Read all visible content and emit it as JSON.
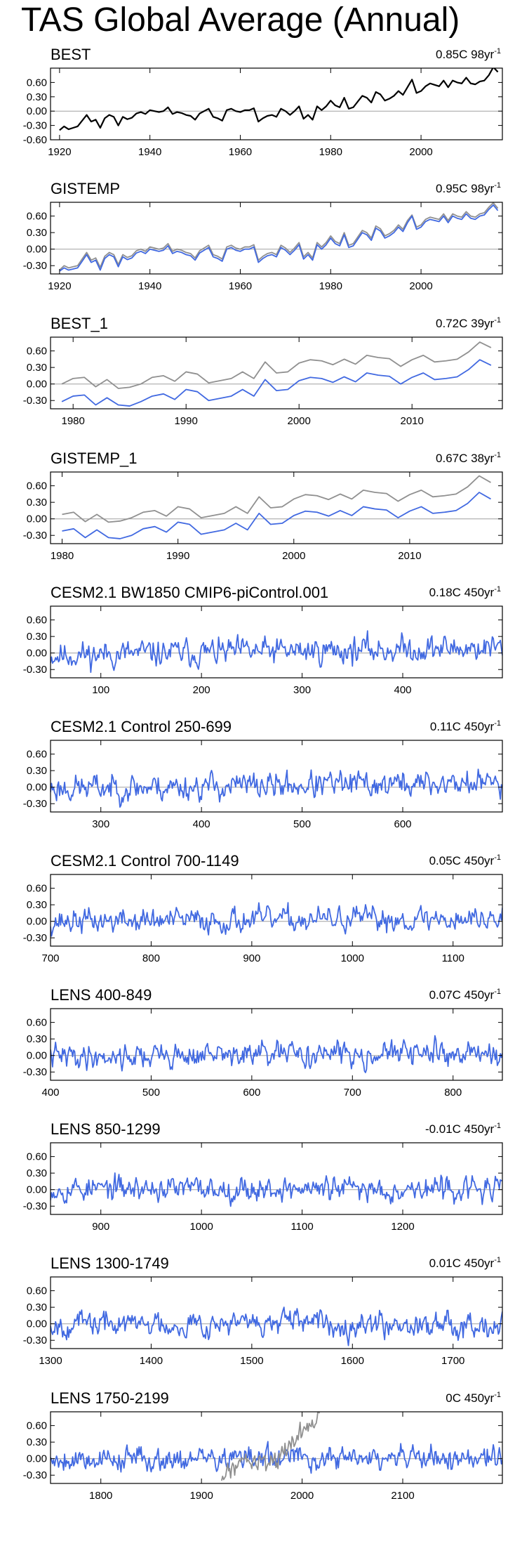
{
  "page_title": "TAS Global Average (Annual)",
  "colors": {
    "model": "#4169e1",
    "observed": "#909090",
    "text": "#000000",
    "zero_line": "#a0a0a0"
  },
  "chart_data": [
    {
      "type": "line",
      "title": "BEST",
      "trend": "0.85C 98yr",
      "trend_unit": "-1",
      "xlim": [
        1918,
        2018
      ],
      "ylim": [
        -0.6,
        0.9
      ],
      "xticks": [
        1920,
        1940,
        1960,
        1980,
        2000
      ],
      "yticks": [
        0.6,
        0.3,
        0.0,
        -0.3,
        -0.6
      ],
      "ytick_labels": [
        "0.60",
        "0.30",
        "0.00",
        "-0.30",
        "-0.60"
      ],
      "series": [
        {
          "name": "BEST",
          "color": "#000000",
          "x_start": 1920,
          "values": [
            -0.4,
            -0.32,
            -0.38,
            -0.35,
            -0.32,
            -0.2,
            -0.08,
            -0.22,
            -0.18,
            -0.35,
            -0.15,
            -0.08,
            -0.12,
            -0.3,
            -0.12,
            -0.17,
            -0.14,
            -0.05,
            -0.02,
            -0.06,
            0.02,
            0.0,
            -0.02,
            0.0,
            0.08,
            -0.06,
            -0.02,
            -0.04,
            -0.08,
            -0.1,
            -0.18,
            -0.05,
            0.0,
            0.05,
            -0.12,
            -0.15,
            -0.2,
            0.02,
            0.05,
            0.0,
            -0.02,
            0.02,
            0.02,
            0.06,
            -0.22,
            -0.15,
            -0.1,
            -0.08,
            -0.12,
            0.05,
            0.0,
            -0.08,
            0.0,
            0.1,
            -0.16,
            -0.08,
            -0.18,
            0.1,
            0.02,
            0.1,
            0.22,
            0.12,
            0.08,
            0.28,
            0.05,
            0.08,
            0.2,
            0.32,
            0.28,
            0.18,
            0.4,
            0.35,
            0.22,
            0.26,
            0.32,
            0.42,
            0.34,
            0.5,
            0.66,
            0.38,
            0.42,
            0.52,
            0.58,
            0.55,
            0.52,
            0.64,
            0.5,
            0.64,
            0.6,
            0.58,
            0.7,
            0.58,
            0.56,
            0.62,
            0.64,
            0.75,
            0.92,
            0.82
          ]
        }
      ]
    },
    {
      "type": "line",
      "title": "GISTEMP",
      "trend": "0.95C 98yr",
      "trend_unit": "-1",
      "xlim": [
        1918,
        2018
      ],
      "ylim": [
        -0.45,
        0.85
      ],
      "xticks": [
        1920,
        1940,
        1960,
        1980,
        2000
      ],
      "yticks": [
        0.6,
        0.3,
        0.0,
        -0.3
      ],
      "ytick_labels": [
        "0.60",
        "0.30",
        "0.00",
        "-0.30"
      ],
      "series": [
        {
          "name": "observed (BEST)",
          "color": "#909090",
          "x_start": 1920,
          "values": [
            -0.38,
            -0.3,
            -0.34,
            -0.32,
            -0.3,
            -0.18,
            -0.06,
            -0.2,
            -0.16,
            -0.33,
            -0.13,
            -0.06,
            -0.1,
            -0.28,
            -0.1,
            -0.15,
            -0.12,
            -0.03,
            0.0,
            -0.04,
            0.04,
            0.02,
            0.0,
            0.02,
            0.1,
            -0.04,
            0.0,
            -0.02,
            -0.06,
            -0.08,
            -0.16,
            -0.03,
            0.02,
            0.07,
            -0.1,
            -0.13,
            -0.18,
            0.04,
            0.07,
            0.02,
            0.0,
            0.04,
            0.04,
            0.08,
            -0.2,
            -0.13,
            -0.08,
            -0.06,
            -0.1,
            0.07,
            0.02,
            -0.06,
            0.02,
            0.12,
            -0.14,
            -0.06,
            -0.16,
            0.12,
            0.04,
            0.12,
            0.24,
            0.14,
            0.1,
            0.3,
            0.07,
            0.1,
            0.22,
            0.34,
            0.3,
            0.2,
            0.42,
            0.37,
            0.24,
            0.28,
            0.34,
            0.44,
            0.36,
            0.52,
            0.62,
            0.4,
            0.44,
            0.54,
            0.58,
            0.56,
            0.54,
            0.64,
            0.52,
            0.64,
            0.6,
            0.58,
            0.68,
            0.6,
            0.58,
            0.64,
            0.66,
            0.76,
            0.84,
            0.74
          ]
        },
        {
          "name": "GISTEMP",
          "color": "#4169e1",
          "x_start": 1920,
          "values": [
            -0.4,
            -0.34,
            -0.38,
            -0.36,
            -0.34,
            -0.22,
            -0.1,
            -0.24,
            -0.2,
            -0.38,
            -0.17,
            -0.1,
            -0.14,
            -0.32,
            -0.14,
            -0.19,
            -0.16,
            -0.07,
            -0.04,
            -0.08,
            0.0,
            -0.02,
            -0.04,
            -0.02,
            0.06,
            -0.08,
            -0.04,
            -0.06,
            -0.1,
            -0.12,
            -0.2,
            -0.07,
            -0.02,
            0.03,
            -0.14,
            -0.17,
            -0.22,
            0.0,
            0.03,
            -0.02,
            -0.04,
            0.0,
            0.0,
            0.04,
            -0.24,
            -0.17,
            -0.12,
            -0.1,
            -0.14,
            0.03,
            -0.02,
            -0.1,
            -0.02,
            0.08,
            -0.18,
            -0.1,
            -0.2,
            0.08,
            0.0,
            0.08,
            0.2,
            0.1,
            0.06,
            0.26,
            0.03,
            0.06,
            0.18,
            0.3,
            0.26,
            0.16,
            0.38,
            0.33,
            0.2,
            0.24,
            0.3,
            0.4,
            0.32,
            0.48,
            0.6,
            0.36,
            0.4,
            0.5,
            0.54,
            0.52,
            0.5,
            0.6,
            0.48,
            0.6,
            0.56,
            0.54,
            0.64,
            0.56,
            0.54,
            0.6,
            0.62,
            0.72,
            0.8,
            0.7
          ]
        }
      ]
    },
    {
      "type": "line",
      "title": "BEST_1",
      "trend": "0.72C 39yr",
      "trend_unit": "-1",
      "xlim": [
        1978,
        2018
      ],
      "ylim": [
        -0.45,
        0.85
      ],
      "xticks": [
        1980,
        1990,
        2000,
        2010
      ],
      "yticks": [
        0.6,
        0.3,
        0.0,
        -0.3
      ],
      "ytick_labels": [
        "0.60",
        "0.30",
        "0.00",
        "-0.30"
      ],
      "series": [
        {
          "name": "observed (BEST)",
          "color": "#909090",
          "x_start": 1979,
          "values": [
            0.0,
            0.1,
            0.12,
            -0.05,
            0.08,
            -0.08,
            -0.06,
            0.0,
            0.12,
            0.15,
            0.05,
            0.22,
            0.18,
            0.02,
            0.06,
            0.1,
            0.22,
            0.1,
            0.4,
            0.2,
            0.22,
            0.38,
            0.44,
            0.42,
            0.35,
            0.45,
            0.36,
            0.52,
            0.48,
            0.46,
            0.32,
            0.44,
            0.52,
            0.4,
            0.42,
            0.45,
            0.58,
            0.76,
            0.66
          ]
        },
        {
          "name": "BEST_1",
          "color": "#4169e1",
          "x_start": 1979,
          "values": [
            -0.32,
            -0.22,
            -0.2,
            -0.38,
            -0.25,
            -0.38,
            -0.4,
            -0.32,
            -0.22,
            -0.18,
            -0.28,
            -0.1,
            -0.14,
            -0.3,
            -0.26,
            -0.22,
            -0.1,
            -0.22,
            0.08,
            -0.12,
            -0.1,
            0.06,
            0.12,
            0.1,
            0.03,
            0.13,
            0.04,
            0.2,
            0.16,
            0.14,
            0.0,
            0.12,
            0.2,
            0.08,
            0.1,
            0.13,
            0.26,
            0.44,
            0.34
          ]
        }
      ]
    },
    {
      "type": "line",
      "title": "GISTEMP_1",
      "trend": "0.67C 38yr",
      "trend_unit": "-1",
      "xlim": [
        1979,
        2018
      ],
      "ylim": [
        -0.45,
        0.85
      ],
      "xticks": [
        1980,
        1990,
        2000,
        2010
      ],
      "yticks": [
        0.6,
        0.3,
        0.0,
        -0.3
      ],
      "ytick_labels": [
        "0.60",
        "0.30",
        "0.00",
        "-0.30"
      ],
      "series": [
        {
          "name": "observed (BEST)",
          "color": "#909090",
          "x_start": 1980,
          "values": [
            0.08,
            0.12,
            -0.05,
            0.08,
            -0.06,
            -0.04,
            0.02,
            0.12,
            0.15,
            0.05,
            0.22,
            0.18,
            0.02,
            0.06,
            0.1,
            0.22,
            0.1,
            0.4,
            0.2,
            0.22,
            0.36,
            0.44,
            0.42,
            0.35,
            0.45,
            0.36,
            0.52,
            0.48,
            0.46,
            0.32,
            0.44,
            0.52,
            0.4,
            0.42,
            0.45,
            0.58,
            0.78,
            0.66
          ]
        },
        {
          "name": "GISTEMP_1",
          "color": "#4169e1",
          "x_start": 1980,
          "values": [
            -0.22,
            -0.18,
            -0.34,
            -0.2,
            -0.34,
            -0.36,
            -0.3,
            -0.18,
            -0.14,
            -0.24,
            -0.06,
            -0.1,
            -0.28,
            -0.24,
            -0.2,
            -0.08,
            -0.2,
            0.1,
            -0.1,
            -0.08,
            0.06,
            0.14,
            0.12,
            0.05,
            0.15,
            0.06,
            0.22,
            0.18,
            0.16,
            0.02,
            0.14,
            0.22,
            0.1,
            0.12,
            0.15,
            0.28,
            0.48,
            0.36
          ]
        }
      ]
    },
    {
      "type": "line",
      "title": "CESM2.1 BW1850 CMIP6-piControl.001",
      "trend": "0.18C 450yr",
      "trend_unit": "-1",
      "xlim": [
        50,
        499
      ],
      "ylim": [
        -0.45,
        0.85
      ],
      "xticks": [
        100,
        200,
        300,
        400
      ],
      "yticks": [
        0.6,
        0.3,
        0.0,
        -0.3
      ],
      "ytick_labels": [
        "0.60",
        "0.30",
        "0.00",
        "-0.30"
      ],
      "series": [
        {
          "name": "CESM2.1 BW1850 CMIP6-piControl.001",
          "color": "#4169e1",
          "x_start": 50,
          "n": 450,
          "seed": 11,
          "amp": 0.11,
          "trend_total": 0.14,
          "offset": -0.04
        }
      ]
    },
    {
      "type": "line",
      "title": "CESM2.1 Control 250-699",
      "trend": "0.11C 450yr",
      "trend_unit": "-1",
      "xlim": [
        250,
        699
      ],
      "ylim": [
        -0.45,
        0.85
      ],
      "xticks": [
        300,
        400,
        500,
        600
      ],
      "yticks": [
        0.6,
        0.3,
        0.0,
        -0.3
      ],
      "ytick_labels": [
        "0.60",
        "0.30",
        "0.00",
        "-0.30"
      ],
      "series": [
        {
          "name": "CESM2.1 Control 250-699",
          "color": "#4169e1",
          "x_start": 250,
          "n": 450,
          "seed": 23,
          "amp": 0.11,
          "trend_total": 0.1,
          "offset": -0.02
        }
      ]
    },
    {
      "type": "line",
      "title": "CESM2.1 Control 700-1149",
      "trend": "0.05C 450yr",
      "trend_unit": "-1",
      "xlim": [
        700,
        1149
      ],
      "ylim": [
        -0.45,
        0.85
      ],
      "xticks": [
        700,
        800,
        900,
        1000,
        1100
      ],
      "yticks": [
        0.6,
        0.3,
        0.0,
        -0.3
      ],
      "ytick_labels": [
        "0.60",
        "0.30",
        "0.00",
        "-0.30"
      ],
      "series": [
        {
          "name": "CESM2.1 Control 700-1149",
          "color": "#4169e1",
          "x_start": 700,
          "n": 450,
          "seed": 37,
          "amp": 0.1,
          "trend_total": 0.05,
          "offset": 0.0
        }
      ]
    },
    {
      "type": "line",
      "title": "LENS 400-849",
      "trend": "0.07C 450yr",
      "trend_unit": "-1",
      "xlim": [
        400,
        849
      ],
      "ylim": [
        -0.45,
        0.85
      ],
      "xticks": [
        400,
        500,
        600,
        700,
        800
      ],
      "yticks": [
        0.6,
        0.3,
        0.0,
        -0.3
      ],
      "ytick_labels": [
        "0.60",
        "0.30",
        "0.00",
        "-0.30"
      ],
      "series": [
        {
          "name": "LENS 400-849",
          "color": "#4169e1",
          "x_start": 400,
          "n": 450,
          "seed": 41,
          "amp": 0.1,
          "trend_total": 0.07,
          "offset": -0.02
        }
      ]
    },
    {
      "type": "line",
      "title": "LENS 850-1299",
      "trend": "-0.01C 450yr",
      "trend_unit": "-1",
      "xlim": [
        850,
        1299
      ],
      "ylim": [
        -0.45,
        0.85
      ],
      "xticks": [
        900,
        1000,
        1100,
        1200
      ],
      "yticks": [
        0.6,
        0.3,
        0.0,
        -0.3
      ],
      "ytick_labels": [
        "0.60",
        "0.30",
        "0.00",
        "-0.30"
      ],
      "series": [
        {
          "name": "LENS 850-1299",
          "color": "#4169e1",
          "x_start": 850,
          "n": 450,
          "seed": 53,
          "amp": 0.1,
          "trend_total": -0.01,
          "offset": 0.02
        }
      ]
    },
    {
      "type": "line",
      "title": "LENS 1300-1749",
      "trend": "0.01C 450yr",
      "trend_unit": "-1",
      "xlim": [
        1300,
        1749
      ],
      "ylim": [
        -0.45,
        0.85
      ],
      "xticks": [
        1300,
        1400,
        1500,
        1600,
        1700
      ],
      "yticks": [
        0.6,
        0.3,
        0.0,
        -0.3
      ],
      "ytick_labels": [
        "0.60",
        "0.30",
        "0.00",
        "-0.30"
      ],
      "series": [
        {
          "name": "LENS 1300-1749",
          "color": "#4169e1",
          "x_start": 1300,
          "n": 450,
          "seed": 67,
          "amp": 0.1,
          "trend_total": 0.01,
          "offset": 0.0
        }
      ]
    },
    {
      "type": "line",
      "title": "LENS 1750-2199",
      "trend": "0C 450yr",
      "trend_unit": "-1",
      "xlim": [
        1750,
        2199
      ],
      "ylim": [
        -0.45,
        0.85
      ],
      "xticks": [
        1800,
        1900,
        2000,
        2100
      ],
      "yticks": [
        0.6,
        0.3,
        0.0,
        -0.3
      ],
      "ytick_labels": [
        "0.60",
        "0.30",
        "0.00",
        "-0.30"
      ],
      "series": [
        {
          "name": "LENS 1750-2199",
          "color": "#4169e1",
          "x_start": 1750,
          "n": 450,
          "seed": 79,
          "amp": 0.1,
          "trend_total": 0.0,
          "offset": 0.0
        },
        {
          "name": "observed (BEST)",
          "color": "#909090",
          "x_start": 1920,
          "values": [
            -0.4,
            -0.32,
            -0.38,
            -0.35,
            -0.32,
            -0.2,
            -0.08,
            -0.22,
            -0.18,
            -0.35,
            -0.15,
            -0.08,
            -0.12,
            -0.3,
            -0.12,
            -0.17,
            -0.14,
            -0.05,
            -0.02,
            -0.06,
            0.02,
            0.0,
            -0.02,
            0.0,
            0.08,
            -0.06,
            -0.02,
            -0.04,
            -0.08,
            -0.1,
            -0.18,
            -0.05,
            0.0,
            0.05,
            -0.12,
            -0.15,
            -0.2,
            0.02,
            0.05,
            0.0,
            -0.02,
            0.02,
            0.02,
            0.06,
            -0.22,
            -0.15,
            -0.1,
            -0.08,
            -0.12,
            0.05,
            0.0,
            -0.08,
            0.0,
            0.1,
            -0.16,
            -0.08,
            -0.18,
            0.1,
            0.02,
            0.1,
            0.22,
            0.12,
            0.08,
            0.28,
            0.05,
            0.08,
            0.2,
            0.32,
            0.28,
            0.18,
            0.4,
            0.35,
            0.22,
            0.26,
            0.32,
            0.42,
            0.34,
            0.5,
            0.66,
            0.38,
            0.42,
            0.52,
            0.58,
            0.55,
            0.52,
            0.64,
            0.5,
            0.64,
            0.6,
            0.58,
            0.7,
            0.58,
            0.56,
            0.62,
            0.64,
            0.75,
            0.92,
            0.82
          ]
        }
      ]
    }
  ]
}
